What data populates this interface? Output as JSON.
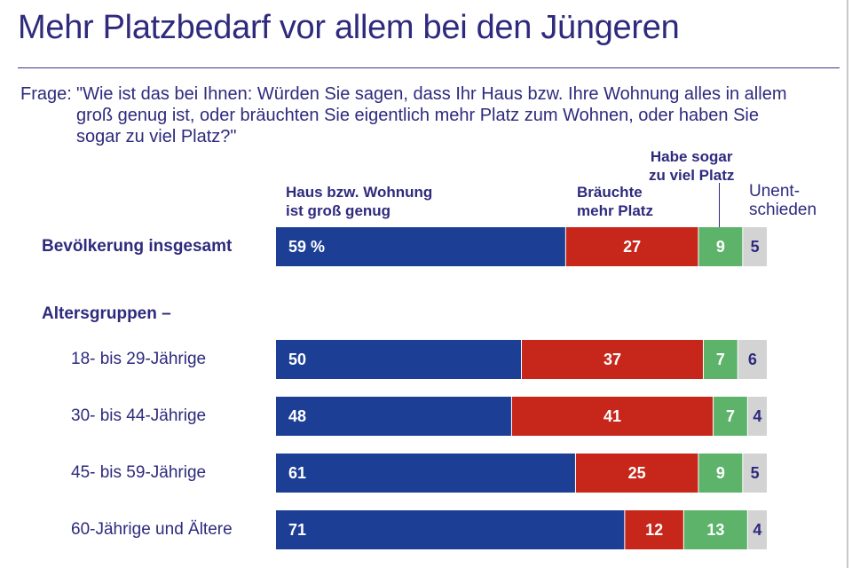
{
  "title": "Mehr Platzbedarf vor allem bei den Jüngeren",
  "question": {
    "prefix": "Frage:",
    "text": "\"Wie ist das bei Ihnen: Würden Sie sagen, dass Ihr Haus bzw. Ihre Wohnung alles in allem groß genug ist, oder bräuchten Sie eigentlich mehr Platz zum Wohnen, oder haben Sie sogar zu viel Platz?\""
  },
  "section_label": "Altersgruppen –",
  "colors": {
    "genug": "#1c3f95",
    "mehr": "#c7261a",
    "zuviel": "#5db36a",
    "unentschieden": "#d3d3d3",
    "value_light": "#ffffff",
    "value_dark": "#2e2a7d"
  },
  "chart_data": {
    "type": "bar",
    "orientation": "horizontal",
    "stacked": true,
    "unit": "%",
    "categories": [
      "Bevölkerung insgesamt",
      "18- bis 29-Jährige",
      "30- bis 44-Jährige",
      "45- bis 59-Jährige",
      "60-Jährige und Ältere"
    ],
    "series": [
      {
        "name": "Haus bzw. Wohnung ist groß genug",
        "values": [
          59,
          50,
          48,
          61,
          71
        ],
        "labels": [
          "59 %",
          "50",
          "48",
          "61",
          "71"
        ]
      },
      {
        "name": "Bräuchte mehr Platz",
        "values": [
          27,
          37,
          41,
          25,
          12
        ],
        "labels": [
          "27",
          "37",
          "41",
          "25",
          "12"
        ]
      },
      {
        "name": "Habe sogar zu viel Platz",
        "values": [
          9,
          7,
          7,
          9,
          13
        ],
        "labels": [
          "9",
          "7",
          "7",
          "9",
          "13"
        ]
      },
      {
        "name": "Unentschieden",
        "values": [
          5,
          6,
          4,
          5,
          4
        ],
        "labels": [
          "5",
          "6",
          "4",
          "5",
          "4"
        ]
      }
    ]
  },
  "legend": {
    "genug": [
      "Haus bzw. Wohnung",
      "ist groß genug"
    ],
    "mehr": [
      "Bräuchte",
      "mehr Platz"
    ],
    "zuviel": [
      "Habe sogar",
      "zu viel Platz"
    ],
    "unentschieden": [
      "Unent-",
      "schieden"
    ]
  }
}
